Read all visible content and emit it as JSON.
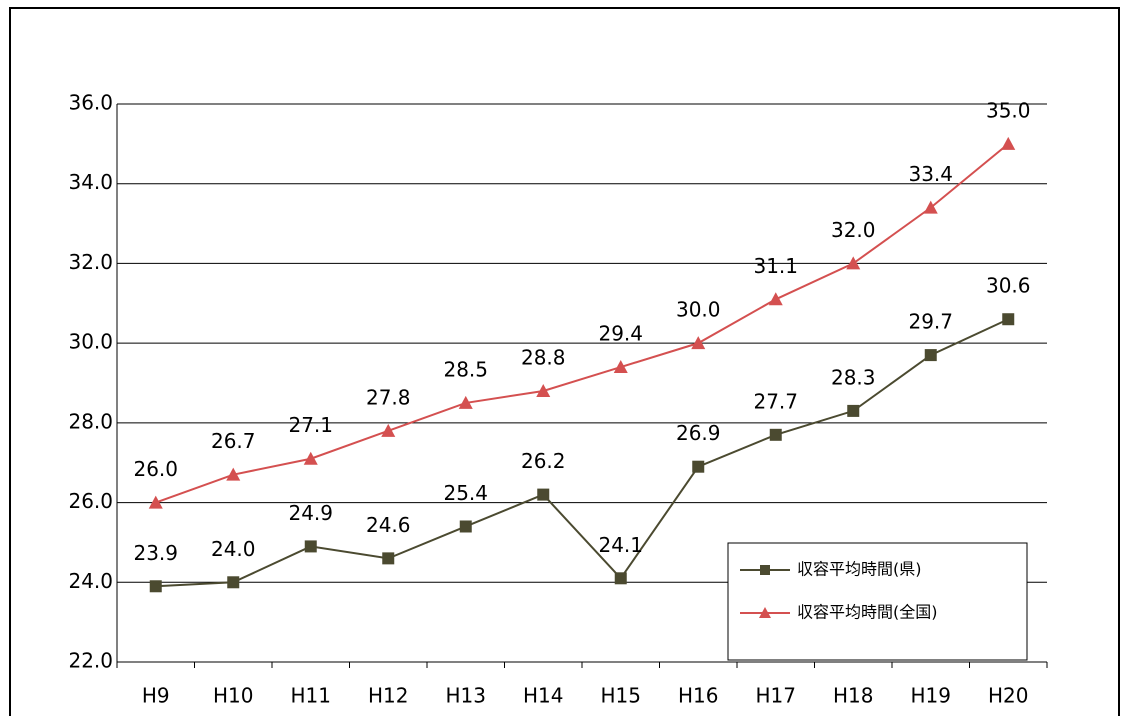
{
  "chart_data": {
    "type": "line",
    "categories": [
      "H9",
      "H10",
      "H11",
      "H12",
      "H13",
      "H14",
      "H15",
      "H16",
      "H17",
      "H18",
      "H19",
      "H20"
    ],
    "series": [
      {
        "name": "収容平均時間(県)",
        "color": "#4b4a30",
        "marker": "square",
        "values": [
          23.9,
          24.0,
          24.9,
          24.6,
          25.4,
          26.2,
          24.1,
          26.9,
          27.7,
          28.3,
          29.7,
          30.6
        ],
        "value_labels": [
          "23.9",
          "24.0",
          "24.9",
          "24.6",
          "25.4",
          "26.2",
          "24.1",
          "26.9",
          "27.7",
          "28.3",
          "29.7",
          "30.6"
        ]
      },
      {
        "name": "収容平均時間(全国)",
        "color": "#d45050",
        "marker": "triangle",
        "values": [
          26.0,
          26.7,
          27.1,
          27.8,
          28.5,
          28.8,
          29.4,
          30.0,
          31.1,
          32.0,
          33.4,
          35.0
        ],
        "value_labels": [
          "26.0",
          "26.7",
          "27.1",
          "27.8",
          "28.5",
          "28.8",
          "29.4",
          "30.0",
          "31.1",
          "32.0",
          "33.4",
          "35.0"
        ]
      }
    ],
    "ylim": [
      22,
      36
    ],
    "yticks": [
      {
        "value": 22,
        "label": "22.0"
      },
      {
        "value": 24,
        "label": "24.0"
      },
      {
        "value": 26,
        "label": "26.0"
      },
      {
        "value": 28,
        "label": "28.0"
      },
      {
        "value": 30,
        "label": "30.0"
      },
      {
        "value": 32,
        "label": "32.0"
      },
      {
        "value": 34,
        "label": "34.0"
      },
      {
        "value": 36,
        "label": "36.0"
      }
    ],
    "grid": true,
    "legend": "lower right"
  }
}
